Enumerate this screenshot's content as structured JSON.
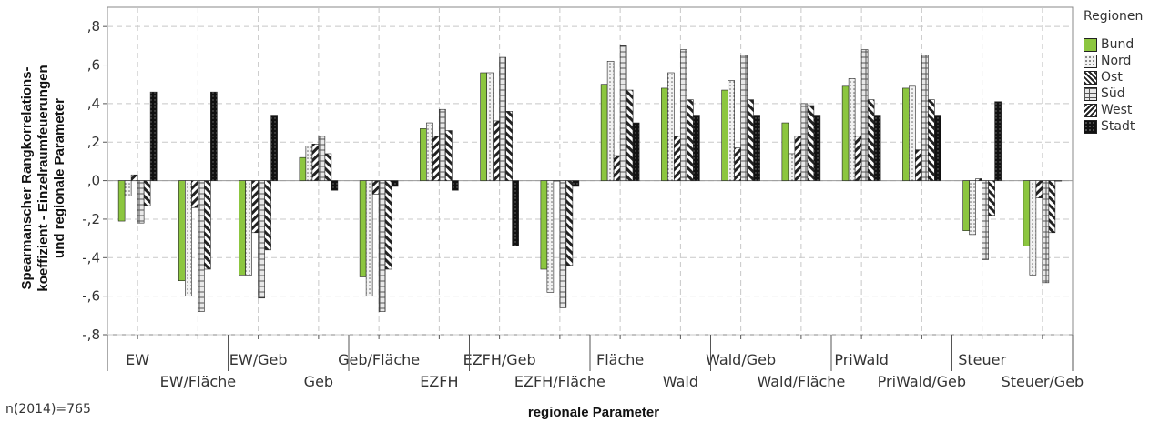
{
  "chart_data": {
    "type": "bar",
    "xlabel": "regionale Parameter",
    "ylabel_lines": [
      "Spearmanscher Rangkorrelations-",
      "koeffizient - Einzelraumfeuerungen",
      "und regionale Parameter"
    ],
    "ylim": [
      -0.8,
      0.9
    ],
    "yticks": [
      ",8",
      ",6",
      ",4",
      ",2",
      ",0",
      "-,2",
      "-,4",
      "-,6",
      "-,8"
    ],
    "ytick_values": [
      0.8,
      0.6,
      0.4,
      0.2,
      0.0,
      -0.2,
      -0.4,
      -0.6,
      -0.8
    ],
    "grid": true,
    "legend_title": "Regionen",
    "legend_position": "right",
    "categories": [
      "EW",
      "EW/Fläche",
      "EW/Geb",
      "Geb",
      "Geb/Fläche",
      "EZFH",
      "EZFH/Geb",
      "EZFH/Fläche",
      "Fläche",
      "Wald",
      "Wald/Geb",
      "Wald/Fläche",
      "PriWald",
      "PriWald/Geb",
      "Steuer",
      "Steuer/Geb"
    ],
    "series": [
      {
        "name": "Bund",
        "color": "#8cc63f",
        "pattern": "solid",
        "values": [
          -0.21,
          -0.52,
          -0.49,
          0.12,
          -0.5,
          0.27,
          0.56,
          -0.46,
          0.5,
          0.48,
          0.47,
          0.3,
          0.49,
          0.48,
          -0.26,
          -0.34
        ]
      },
      {
        "name": "Nord",
        "color": "#eeeeee",
        "pattern": "dots",
        "values": [
          -0.08,
          -0.6,
          -0.49,
          0.18,
          -0.6,
          0.3,
          0.56,
          -0.58,
          0.62,
          0.56,
          0.52,
          0.14,
          0.53,
          0.49,
          -0.28,
          -0.49
        ]
      },
      {
        "name": "Ost",
        "color": "#ffffff",
        "pattern": "hatch",
        "values": [
          0.03,
          -0.14,
          -0.27,
          0.19,
          -0.07,
          0.23,
          0.31,
          0.0,
          0.13,
          0.23,
          0.17,
          0.23,
          0.23,
          0.16,
          0.01,
          -0.09
        ]
      },
      {
        "name": "Süd",
        "color": "#ffffff",
        "pattern": "cross",
        "values": [
          -0.22,
          -0.68,
          -0.61,
          0.23,
          -0.68,
          0.37,
          0.64,
          -0.66,
          0.7,
          0.68,
          0.65,
          0.4,
          0.68,
          0.65,
          -0.41,
          -0.53
        ]
      },
      {
        "name": "West",
        "color": "#ffffff",
        "pattern": "backhatch",
        "values": [
          -0.13,
          -0.46,
          -0.36,
          0.14,
          -0.46,
          0.26,
          0.36,
          -0.44,
          0.47,
          0.42,
          0.42,
          0.39,
          0.42,
          0.42,
          -0.18,
          -0.27
        ]
      },
      {
        "name": "Stadt",
        "color": "#111111",
        "pattern": "dark",
        "values": [
          0.46,
          0.46,
          0.34,
          -0.05,
          -0.03,
          -0.05,
          -0.34,
          -0.03,
          0.3,
          0.34,
          0.34,
          0.34,
          0.34,
          0.34,
          0.41,
          0.0
        ]
      }
    ]
  },
  "footnote": "n(2014)=765"
}
